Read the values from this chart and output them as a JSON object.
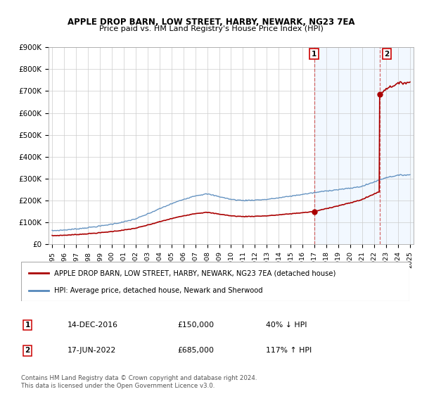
{
  "title": "APPLE DROP BARN, LOW STREET, HARBY, NEWARK, NG23 7EA",
  "subtitle": "Price paid vs. HM Land Registry's House Price Index (HPI)",
  "hpi_label": "HPI: Average price, detached house, Newark and Sherwood",
  "property_label": "APPLE DROP BARN, LOW STREET, HARBY, NEWARK, NG23 7EA (detached house)",
  "footnote": "Contains HM Land Registry data © Crown copyright and database right 2024.\nThis data is licensed under the Open Government Licence v3.0.",
  "transaction1_date": "14-DEC-2016",
  "transaction1_price": 150000,
  "transaction1_hpi_pct": "40% ↓ HPI",
  "transaction2_date": "17-JUN-2022",
  "transaction2_price": 685000,
  "transaction2_hpi_pct": "117% ↑ HPI",
  "hpi_color": "#5588bb",
  "property_color": "#aa0000",
  "highlight_bg": "#ddeeff",
  "ylim": [
    0,
    900000
  ],
  "yticks": [
    0,
    100000,
    200000,
    300000,
    400000,
    500000,
    600000,
    700000,
    800000,
    900000
  ],
  "xmin": 1995,
  "xmax": 2025,
  "tx1_x": 2016.958,
  "tx2_x": 2022.458
}
